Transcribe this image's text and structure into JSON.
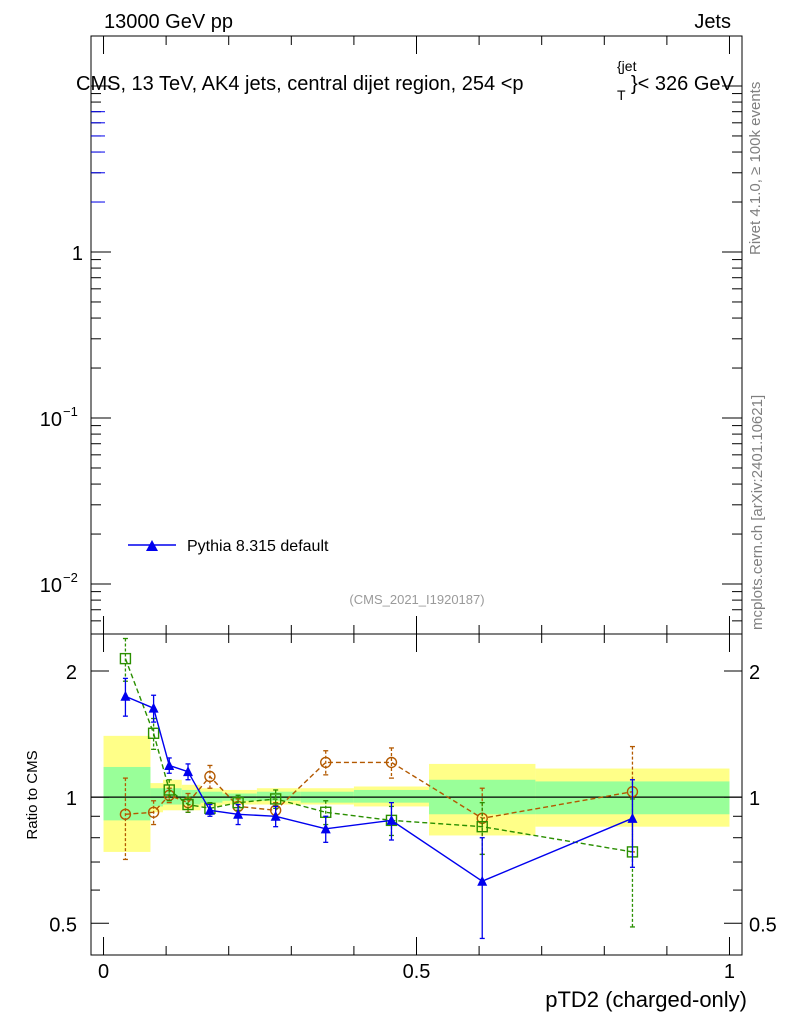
{
  "header": {
    "left": "13000 GeV pp",
    "right": "Jets"
  },
  "title": {
    "main": "CMS, 13 TeV, AK4 jets, central dijet region, 254 <p",
    "sup": "{jet",
    "sub": "T",
    "tail": "}< 326 GeV"
  },
  "side_labels": {
    "rivet": "Rivet 4.1.0, ≥ 100k events",
    "mcplots": "mcplots.cern.ch [arXiv:2401.10621]"
  },
  "analysis_id": "(CMS_2021_I1920187)",
  "legend": {
    "entries": [
      "Pythia 8.315 default"
    ]
  },
  "colors": {
    "pythia": "#0000ee",
    "orange": "#b35900",
    "green": "#2a8f00",
    "band_inner": "#99ff99",
    "band_outer": "#ffff88",
    "ref_line": "#000000"
  },
  "chart_data": [
    {
      "type": "line",
      "title": "CMS, 13 TeV, AK4 jets, central dijet region, 254 <p_T^{jet}< 326 GeV",
      "xlabel": "",
      "ylabel": "",
      "yscale": "log",
      "xlim": [
        -0.02,
        1.02
      ],
      "ylim": [
        0.005,
        20
      ],
      "yticks": [
        {
          "value": 1,
          "label": "1"
        },
        {
          "value": 0.1,
          "label": "10",
          "exp": "−1"
        },
        {
          "value": 0.01,
          "label": "10",
          "exp": "−2"
        }
      ],
      "series": [
        {
          "name": "Pythia 8.315 default",
          "values": []
        }
      ]
    },
    {
      "type": "line",
      "xlabel": "pTD2 (charged-only)",
      "ylabel": "Ratio to CMS",
      "yscale": "log",
      "xlim": [
        -0.02,
        1.02
      ],
      "ylim": [
        0.42,
        2.45
      ],
      "xticks": [
        {
          "value": 0,
          "label": "0"
        },
        {
          "value": 0.5,
          "label": "0.5"
        },
        {
          "value": 1,
          "label": "1"
        }
      ],
      "yticks": [
        {
          "value": 0.5,
          "label": "0.5"
        },
        {
          "value": 1,
          "label": "1"
        },
        {
          "value": 2,
          "label": "2"
        }
      ],
      "bins": [
        {
          "lo": 0.0,
          "hi": 0.075,
          "stat": [
            0.88,
            1.18
          ],
          "tot": [
            0.74,
            1.4
          ]
        },
        {
          "lo": 0.075,
          "hi": 0.095,
          "stat": [
            0.95,
            1.05
          ],
          "tot": [
            0.92,
            1.08
          ]
        },
        {
          "lo": 0.095,
          "hi": 0.125,
          "stat": [
            0.96,
            1.05
          ],
          "tot": [
            0.93,
            1.1
          ]
        },
        {
          "lo": 0.125,
          "hi": 0.155,
          "stat": [
            0.96,
            1.04
          ],
          "tot": [
            0.93,
            1.07
          ]
        },
        {
          "lo": 0.155,
          "hi": 0.19,
          "stat": [
            0.97,
            1.03
          ],
          "tot": [
            0.95,
            1.05
          ]
        },
        {
          "lo": 0.19,
          "hi": 0.245,
          "stat": [
            0.98,
            1.02
          ],
          "tot": [
            0.96,
            1.04
          ]
        },
        {
          "lo": 0.245,
          "hi": 0.315,
          "stat": [
            0.98,
            1.03
          ],
          "tot": [
            0.96,
            1.05
          ]
        },
        {
          "lo": 0.315,
          "hi": 0.4,
          "stat": [
            0.97,
            1.03
          ],
          "tot": [
            0.96,
            1.05
          ]
        },
        {
          "lo": 0.4,
          "hi": 0.52,
          "stat": [
            0.97,
            1.04
          ],
          "tot": [
            0.95,
            1.06
          ]
        },
        {
          "lo": 0.52,
          "hi": 0.69,
          "stat": [
            0.91,
            1.1
          ],
          "tot": [
            0.81,
            1.2
          ]
        },
        {
          "lo": 0.69,
          "hi": 1.0,
          "stat": [
            0.91,
            1.09
          ],
          "tot": [
            0.85,
            1.17
          ]
        }
      ],
      "series": [
        {
          "name": "Pythia 8.315 default",
          "color": "#0000ee",
          "marker": "triangle",
          "dash": "solid",
          "x": [
            0.035,
            0.08,
            0.105,
            0.135,
            0.17,
            0.215,
            0.275,
            0.355,
            0.46,
            0.605,
            0.845
          ],
          "y": [
            1.74,
            1.63,
            1.19,
            1.15,
            0.93,
            0.91,
            0.9,
            0.84,
            0.88,
            0.63,
            0.89
          ],
          "err": [
            0.18,
            0.12,
            0.05,
            0.05,
            0.03,
            0.05,
            0.05,
            0.06,
            0.09,
            0.17,
            0.21
          ]
        },
        {
          "name": "",
          "color": "#b35900",
          "marker": "circle",
          "dash": "dashed",
          "x": [
            0.035,
            0.08,
            0.105,
            0.135,
            0.17,
            0.215,
            0.275,
            0.355,
            0.46,
            0.605,
            0.845
          ],
          "y": [
            0.91,
            0.92,
            1.01,
            0.97,
            1.12,
            0.95,
            0.93,
            1.21,
            1.21,
            0.89,
            1.03
          ],
          "err": [
            0.2,
            0.06,
            0.04,
            0.05,
            0.07,
            0.04,
            0.04,
            0.08,
            0.1,
            0.16,
            0.29
          ]
        },
        {
          "name": "",
          "color": "#2a8f00",
          "marker": "square",
          "dash": "dashed",
          "x": [
            0.035,
            0.08,
            0.105,
            0.135,
            0.17,
            0.215,
            0.275,
            0.355,
            0.46,
            0.605,
            0.845
          ],
          "y": [
            2.14,
            1.42,
            1.04,
            0.96,
            0.94,
            0.97,
            0.99,
            0.92,
            0.88,
            0.85,
            0.74
          ],
          "err": [
            0.25,
            0.12,
            0.06,
            0.04,
            0.03,
            0.04,
            0.05,
            0.06,
            0.07,
            0.12,
            0.25
          ]
        }
      ]
    }
  ]
}
